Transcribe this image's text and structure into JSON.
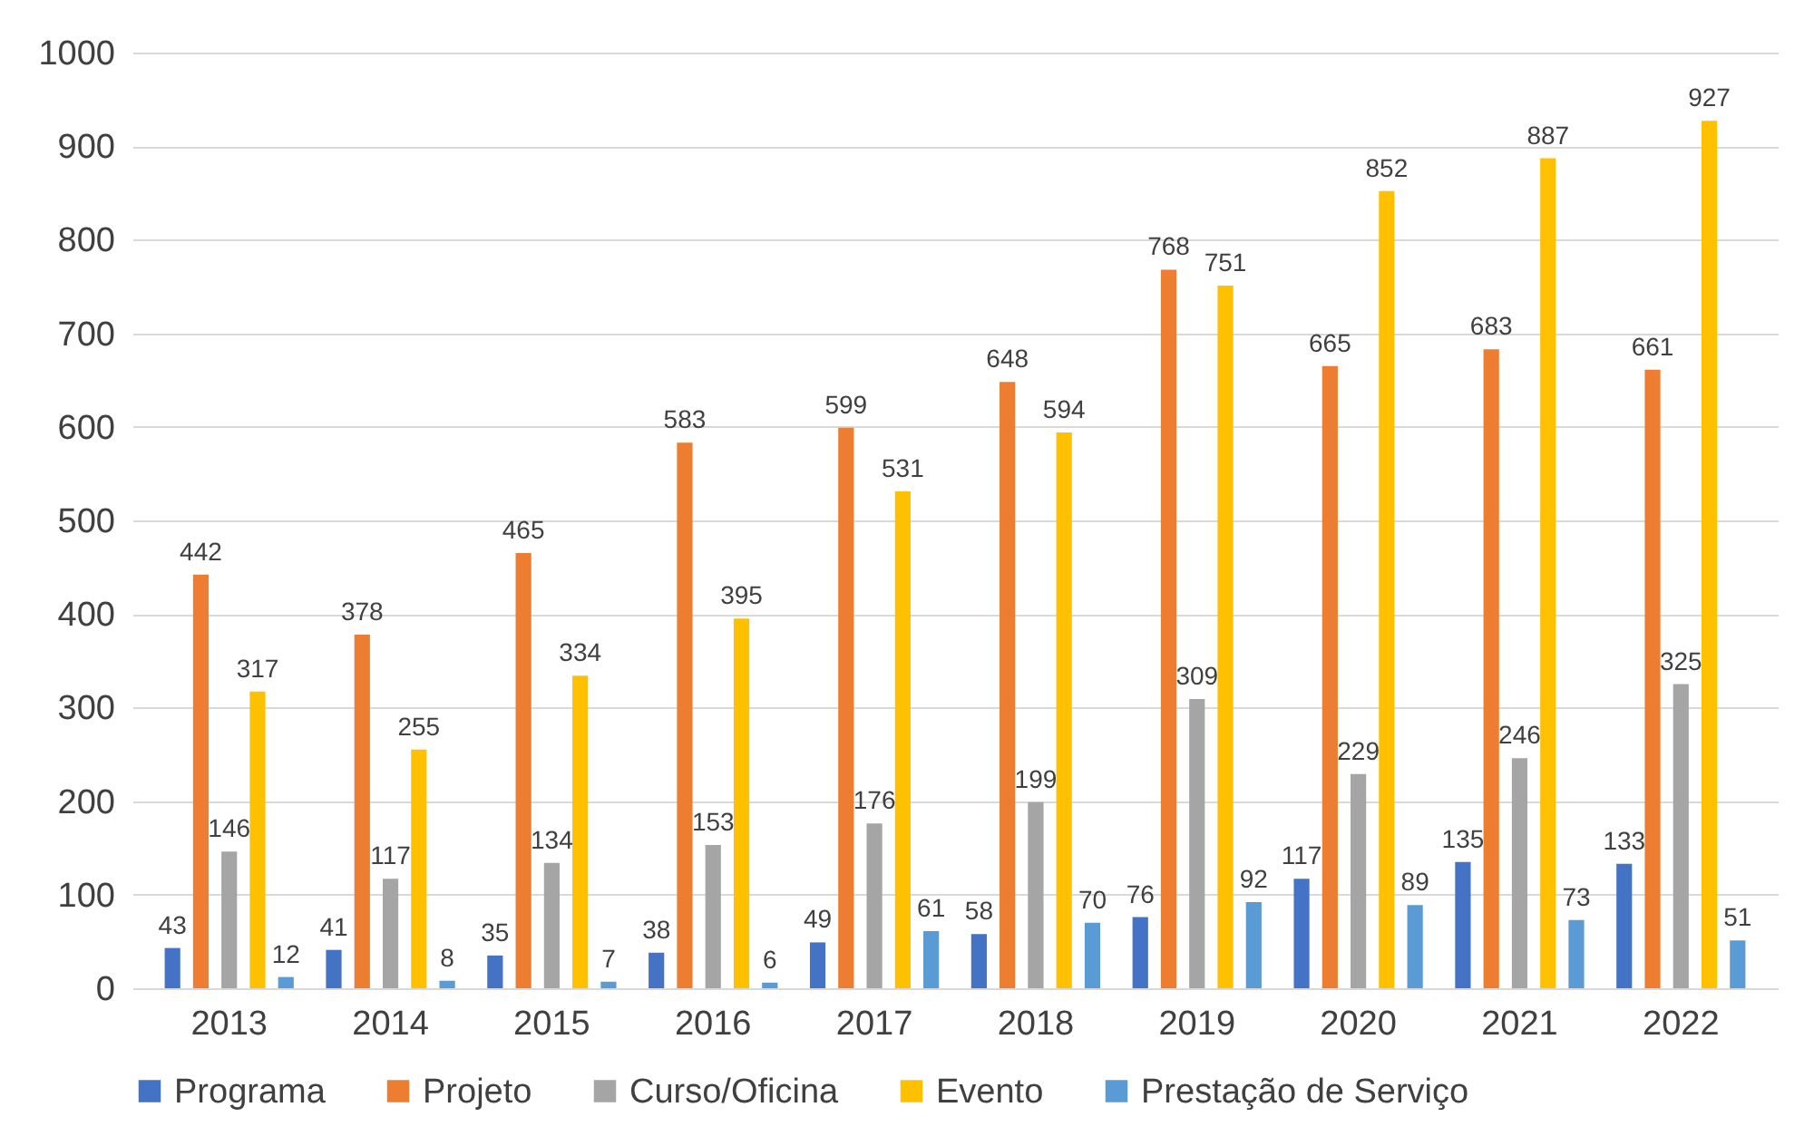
{
  "chart_data": {
    "type": "bar",
    "categories": [
      "2013",
      "2014",
      "2015",
      "2016",
      "2017",
      "2018",
      "2019",
      "2020",
      "2021",
      "2022"
    ],
    "series": [
      {
        "name": "Programa",
        "color": "#4472c4",
        "values": [
          43,
          41,
          35,
          38,
          49,
          58,
          76,
          117,
          135,
          133
        ]
      },
      {
        "name": "Projeto",
        "color": "#ed7d31",
        "values": [
          442,
          378,
          465,
          583,
          599,
          648,
          768,
          665,
          683,
          661
        ]
      },
      {
        "name": "Curso/Oficina",
        "color": "#a5a5a5",
        "values": [
          146,
          117,
          134,
          153,
          176,
          199,
          309,
          229,
          246,
          325
        ]
      },
      {
        "name": "Evento",
        "color": "#ffc000",
        "values": [
          317,
          255,
          334,
          395,
          531,
          594,
          751,
          852,
          887,
          927
        ]
      },
      {
        "name": "Prestação de Serviço",
        "color": "#5b9bd5",
        "values": [
          12,
          8,
          7,
          6,
          61,
          70,
          92,
          89,
          73,
          51
        ]
      }
    ],
    "ylim": [
      0,
      1000
    ],
    "yticks": [
      0,
      100,
      200,
      300,
      400,
      500,
      600,
      700,
      800,
      900,
      1000
    ],
    "grid": "y",
    "legend": "bottom",
    "data_labels": true
  }
}
